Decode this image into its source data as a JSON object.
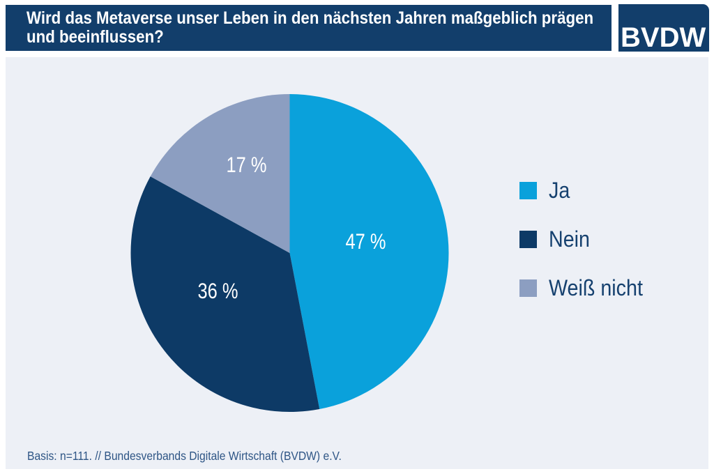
{
  "header": {
    "title_lines": [
      "Wird das Metaverse unser Leben in den nächsten Jahren maßgeblich prägen",
      "und beeinflussen?"
    ],
    "background_color": "#123E6B",
    "text_color": "#FFFFFF"
  },
  "logo": {
    "text": "BVDW",
    "background_color": "#123E6B",
    "text_color": "#FFFFFF"
  },
  "content": {
    "background_color": "#EDF0F6"
  },
  "chart_data": {
    "type": "pie",
    "title": "Wird das Metaverse unser Leben in den nächsten Jahren maßgeblich prägen und beeinflussen?",
    "categories": [
      "Ja",
      "Nein",
      "Weiß nicht"
    ],
    "values": [
      47,
      36,
      17
    ],
    "slices": [
      {
        "label": "Ja",
        "value": 47,
        "display": "47 %",
        "color": "#0AA1DB"
      },
      {
        "label": "Nein",
        "value": 36,
        "display": "36 %",
        "color": "#0D3A66"
      },
      {
        "label": "Weiß nicht",
        "value": 17,
        "display": "17 %",
        "color": "#8C9EC1"
      }
    ],
    "start_angle_deg": 0,
    "direction": "clockwise",
    "legend_position": "right",
    "label_color": "#FFFFFF"
  },
  "footer": {
    "note": "Basis: n=111. // Bundesverbands Digitale Wirtschaft (BVDW) e.V."
  }
}
